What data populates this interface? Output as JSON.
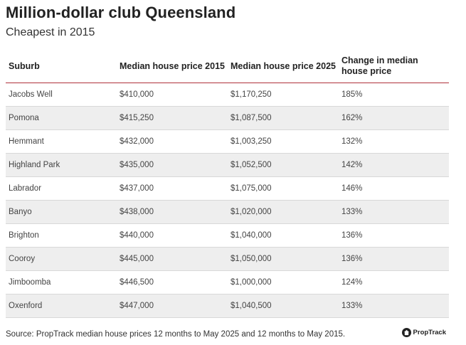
{
  "chart_data": {
    "type": "table",
    "title": "Million-dollar club Queensland",
    "subtitle": "Cheapest in 2015",
    "columns": [
      "Suburb",
      "Median house price 2015",
      "Median house price 2025",
      "Change in median house price"
    ],
    "rows": [
      [
        "Jacobs Well",
        "$410,000",
        "$1,170,250",
        "185%"
      ],
      [
        "Pomona",
        "$415,250",
        "$1,087,500",
        "162%"
      ],
      [
        "Hemmant",
        "$432,000",
        "$1,003,250",
        "132%"
      ],
      [
        "Highland Park",
        "$435,000",
        "$1,052,500",
        "142%"
      ],
      [
        "Labrador",
        "$437,000",
        "$1,075,000",
        "146%"
      ],
      [
        "Banyo",
        "$438,000",
        "$1,020,000",
        "133%"
      ],
      [
        "Brighton",
        "$440,000",
        "$1,040,000",
        "136%"
      ],
      [
        "Cooroy",
        "$445,000",
        "$1,050,000",
        "136%"
      ],
      [
        "Jimboomba",
        "$446,500",
        "$1,000,000",
        "124%"
      ],
      [
        "Oxenford",
        "$447,000",
        "$1,040,500",
        "133%"
      ]
    ],
    "source": "Source: PropTrack median house prices 12 months to May 2025 and 12 months to May 2015."
  },
  "brand": {
    "name": "PropTrack",
    "accent": "#b0323c"
  }
}
